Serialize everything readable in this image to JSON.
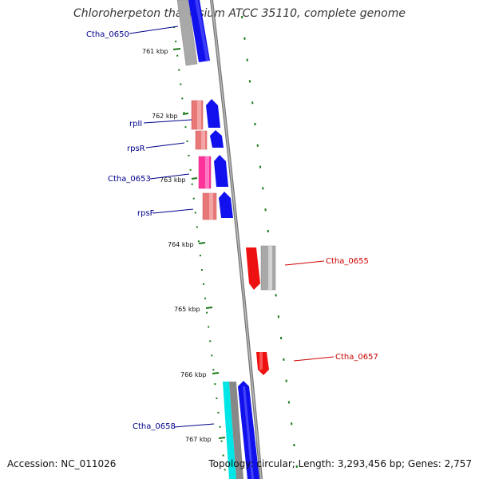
{
  "title": "Chloroherpeton thalassium ATCC 35110, complete genome",
  "footer": {
    "accession": "Accession: NC_011026",
    "topology": "Topology: circular; Length: 3,293,456 bp; Genes: 2,757"
  },
  "ticks": [
    "761 kbp",
    "762 kbp",
    "763 kbp",
    "764 kbp",
    "765 kbp",
    "766 kbp",
    "767 kbp"
  ],
  "gene_labels": {
    "ctha_0650": "Ctha_0650",
    "rpll": "rplI",
    "rpsr": "rpsR",
    "ctha_0653": "Ctha_0653",
    "rpsf": "rpsF",
    "ctha_0655": "Ctha_0655",
    "ctha_0657": "Ctha_0657",
    "ctha_0658": "Ctha_0658"
  },
  "colors": {
    "forward_cds": "#1111ee",
    "reverse_cds": "#ee1111",
    "rrna_pink": "#e87878",
    "magenta": "#ff3399",
    "cyan": "#00e5e5",
    "gray": "#a8a8a8",
    "backbone": "#888888",
    "gc_dots": "#1a7a1a"
  }
}
